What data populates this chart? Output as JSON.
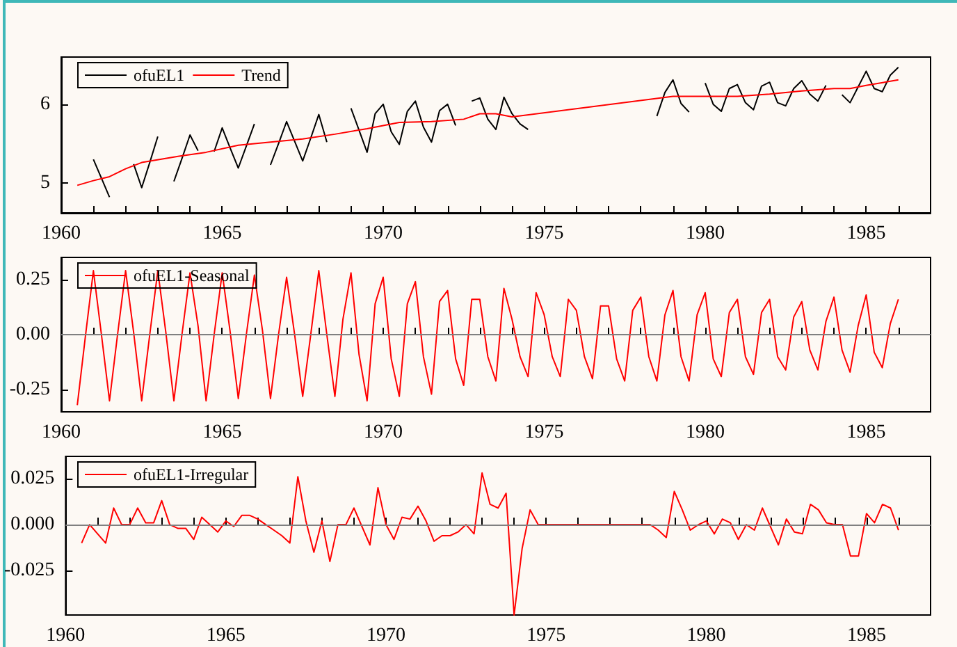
{
  "chart_data": [
    {
      "type": "line",
      "legend": "top left",
      "grid": false,
      "marker": "none",
      "line_style": "solid",
      "x": [
        1961,
        1961.25,
        1961.5,
        1961.75,
        1962,
        1962.25,
        1962.5,
        1962.75,
        1963,
        1963.25,
        1963.5,
        1963.75,
        1964,
        1964.25,
        1964.5,
        1964.75,
        1965,
        1965.25,
        1965.5,
        1965.75,
        1966,
        1966.25,
        1966.5,
        1966.75,
        1967,
        1967.25,
        1967.5,
        1967.75,
        1968,
        1968.25,
        1968.5,
        1968.75,
        1969,
        1969.25,
        1969.5,
        1969.75,
        1970,
        1970.25,
        1970.5,
        1970.75,
        1971,
        1971.25,
        1971.5,
        1971.75,
        1972,
        1972.25,
        1972.5,
        1972.75,
        1973,
        1973.25,
        1973.5,
        1973.75,
        1974,
        1974.25,
        1974.5,
        1974.75,
        1975,
        1975.25,
        1975.5,
        1975.75,
        1976,
        1976.25,
        1976.5,
        1976.75,
        1977,
        1977.25,
        1977.5,
        1977.75,
        1978,
        1978.25,
        1978.5,
        1978.75,
        1979,
        1979.25,
        1979.5,
        1979.75,
        1980,
        1980.25,
        1980.5,
        1980.75,
        1981,
        1981.25,
        1981.5,
        1981.75,
        1982,
        1982.25,
        1982.5,
        1982.75,
        1983,
        1983.25,
        1983.5,
        1983.75,
        1984,
        1984.25,
        1984.5,
        1984.75,
        1985,
        1985.25,
        1985.5,
        1985.75,
        1986
      ],
      "series": [
        {
          "name": "ofuEL1",
          "color": "#000000",
          "values": [
            5.3,
            5.06,
            4.82,
            null,
            null,
            5.24,
            4.94,
            5.26,
            5.59,
            null,
            5.02,
            5.31,
            5.61,
            5.41,
            null,
            5.4,
            5.7,
            5.44,
            5.19,
            5.47,
            5.75,
            null,
            5.23,
            5.5,
            5.78,
            5.53,
            5.28,
            5.57,
            5.87,
            5.52,
            null,
            null,
            5.95,
            5.67,
            5.39,
            5.88,
            6.0,
            5.65,
            5.49,
            5.91,
            6.04,
            5.71,
            5.52,
            5.92,
            6.0,
            5.73,
            null,
            6.04,
            6.08,
            5.81,
            5.68,
            6.09,
            5.88,
            5.75,
            5.68,
            null,
            null,
            null,
            null,
            null,
            null,
            null,
            null,
            null,
            null,
            null,
            null,
            null,
            null,
            null,
            5.85,
            6.15,
            6.31,
            6.01,
            5.9,
            null,
            6.27,
            6.0,
            5.91,
            6.2,
            6.25,
            6.02,
            5.93,
            6.23,
            6.28,
            6.02,
            5.98,
            6.2,
            6.3,
            6.13,
            6.04,
            6.24,
            null,
            6.12,
            6.02,
            6.22,
            6.42,
            6.2,
            6.16,
            6.37,
            6.47
          ]
        },
        {
          "name": "Trend",
          "color": "#ff0000",
          "x": [
            1960.5,
            1961,
            1961.5,
            1962,
            1962.5,
            1963.5,
            1964.5,
            1965.5,
            1966.5,
            1967.5,
            1968.5,
            1969.5,
            1970.5,
            1971.5,
            1972.5,
            1973,
            1973.5,
            1974,
            1979,
            1980,
            1981,
            1982,
            1983,
            1984,
            1984.5,
            1985,
            1986
          ],
          "values": [
            4.97,
            5.03,
            5.08,
            5.18,
            5.26,
            5.33,
            5.39,
            5.48,
            5.52,
            5.56,
            5.62,
            5.69,
            5.77,
            5.78,
            5.81,
            5.88,
            5.88,
            5.84,
            6.1,
            6.1,
            6.1,
            6.13,
            6.17,
            6.2,
            6.2,
            6.24,
            6.31
          ]
        }
      ],
      "xlim": [
        1960,
        1987
      ],
      "xticks": [
        1960,
        {
          "value": 1961,
          "label": null
        },
        {
          "value": 1962,
          "label": null
        },
        {
          "value": 1963,
          "label": null
        },
        {
          "value": 1964,
          "label": null
        },
        1965,
        {
          "value": 1966,
          "label": null
        },
        {
          "value": 1967,
          "label": null
        },
        {
          "value": 1968,
          "label": null
        },
        {
          "value": 1969,
          "label": null
        },
        1970,
        {
          "value": 1971,
          "label": null
        },
        {
          "value": 1972,
          "label": null
        },
        {
          "value": 1973,
          "label": null
        },
        {
          "value": 1974,
          "label": null
        },
        1975,
        {
          "value": 1976,
          "label": null
        },
        {
          "value": 1977,
          "label": null
        },
        {
          "value": 1978,
          "label": null
        },
        {
          "value": 1979,
          "label": null
        },
        1980,
        {
          "value": 1981,
          "label": null
        },
        {
          "value": 1982,
          "label": null
        },
        {
          "value": 1983,
          "label": null
        },
        {
          "value": 1984,
          "label": null
        },
        1985,
        {
          "value": 1986,
          "label": null
        }
      ],
      "ylim": [
        4.62,
        6.6
      ],
      "yticks": [
        5,
        6
      ]
    },
    {
      "type": "line",
      "legend": "top left",
      "grid": false,
      "marker": "none",
      "line_style": "solid",
      "x": [
        1960.5,
        1960.75,
        1961,
        1961.25,
        1961.5,
        1961.75,
        1962,
        1962.25,
        1962.5,
        1962.75,
        1963,
        1963.25,
        1963.5,
        1963.75,
        1964,
        1964.25,
        1964.5,
        1964.75,
        1965,
        1965.25,
        1965.5,
        1965.75,
        1966,
        1966.25,
        1966.5,
        1966.75,
        1967,
        1967.25,
        1967.5,
        1967.75,
        1968,
        1968.25,
        1968.5,
        1968.75,
        1969,
        1969.25,
        1969.5,
        1969.75,
        1970,
        1970.25,
        1970.5,
        1970.75,
        1971,
        1971.25,
        1971.5,
        1971.75,
        1972,
        1972.25,
        1972.5,
        1972.75,
        1973,
        1973.25,
        1973.5,
        1973.75,
        1974,
        1974.25,
        1974.5,
        1974.75,
        1975,
        1975.25,
        1975.5,
        1975.75,
        1976,
        1976.25,
        1976.5,
        1976.75,
        1977,
        1977.25,
        1977.5,
        1977.75,
        1978,
        1978.25,
        1978.5,
        1978.75,
        1979,
        1979.25,
        1979.5,
        1979.75,
        1980,
        1980.25,
        1980.5,
        1980.75,
        1981,
        1981.25,
        1981.5,
        1981.75,
        1982,
        1982.25,
        1982.5,
        1982.75,
        1983,
        1983.25,
        1983.5,
        1983.75,
        1984,
        1984.25,
        1984.5,
        1984.75,
        1985,
        1985.25,
        1985.5,
        1985.75,
        1986
      ],
      "series": [
        {
          "name": "ofuEL1-Seasonal",
          "color": "#ff0000",
          "values": [
            -0.32,
            -0.01,
            0.29,
            0.0,
            -0.3,
            0.0,
            0.29,
            0.01,
            -0.3,
            0.0,
            0.29,
            0.01,
            -0.3,
            0.0,
            0.28,
            0.04,
            -0.3,
            0.0,
            0.28,
            0.01,
            -0.29,
            0.0,
            0.27,
            0.02,
            -0.29,
            0.0,
            0.26,
            0.0,
            -0.28,
            0.0,
            0.29,
            0.0,
            -0.28,
            0.07,
            0.28,
            -0.09,
            -0.3,
            0.14,
            0.26,
            -0.11,
            -0.28,
            0.14,
            0.24,
            -0.1,
            -0.27,
            0.15,
            0.2,
            -0.11,
            -0.23,
            0.16,
            0.16,
            -0.1,
            -0.21,
            0.21,
            0.07,
            -0.1,
            -0.19,
            0.19,
            0.09,
            -0.1,
            -0.19,
            0.16,
            0.11,
            -0.1,
            -0.2,
            0.13,
            0.13,
            -0.11,
            -0.21,
            0.11,
            0.17,
            -0.1,
            -0.21,
            0.09,
            0.2,
            -0.1,
            -0.21,
            0.09,
            0.19,
            -0.11,
            -0.19,
            0.1,
            0.16,
            -0.1,
            -0.18,
            0.1,
            0.16,
            -0.1,
            -0.16,
            0.08,
            0.15,
            -0.07,
            -0.16,
            0.06,
            0.17,
            -0.07,
            -0.17,
            0.04,
            0.18,
            -0.08,
            -0.15,
            0.05,
            0.16
          ]
        }
      ],
      "ref_lines": [
        {
          "axis": "y",
          "value": 0,
          "color": "#808080"
        }
      ],
      "xlim": [
        1960,
        1987
      ],
      "xticks": [
        1960,
        {
          "value": 1961,
          "label": null
        },
        {
          "value": 1962,
          "label": null
        },
        {
          "value": 1963,
          "label": null
        },
        {
          "value": 1964,
          "label": null
        },
        1965,
        {
          "value": 1966,
          "label": null
        },
        {
          "value": 1967,
          "label": null
        },
        {
          "value": 1968,
          "label": null
        },
        {
          "value": 1969,
          "label": null
        },
        1970,
        {
          "value": 1971,
          "label": null
        },
        {
          "value": 1972,
          "label": null
        },
        {
          "value": 1973,
          "label": null
        },
        {
          "value": 1974,
          "label": null
        },
        1975,
        {
          "value": 1976,
          "label": null
        },
        {
          "value": 1977,
          "label": null
        },
        {
          "value": 1978,
          "label": null
        },
        {
          "value": 1979,
          "label": null
        },
        1980,
        {
          "value": 1981,
          "label": null
        },
        {
          "value": 1982,
          "label": null
        },
        {
          "value": 1983,
          "label": null
        },
        {
          "value": 1984,
          "label": null
        },
        1985,
        {
          "value": 1986,
          "label": null
        }
      ],
      "ylim": [
        -0.35,
        0.35
      ],
      "yticks": [
        -0.25,
        {
          "value": 0,
          "label": "0.00"
        },
        0.25
      ]
    },
    {
      "type": "line",
      "legend": "top left",
      "grid": false,
      "marker": "none",
      "line_style": "solid",
      "x": [
        1960.5,
        1960.75,
        1961,
        1961.25,
        1961.5,
        1961.75,
        1962,
        1962.25,
        1962.5,
        1962.75,
        1963,
        1963.25,
        1963.5,
        1963.75,
        1964,
        1964.25,
        1964.5,
        1964.75,
        1965,
        1965.25,
        1965.5,
        1965.75,
        1966,
        1966.25,
        1966.5,
        1966.75,
        1967,
        1967.25,
        1967.5,
        1967.75,
        1968,
        1968.25,
        1968.5,
        1968.75,
        1969,
        1969.25,
        1969.5,
        1969.75,
        1970,
        1970.25,
        1970.5,
        1970.75,
        1971,
        1971.25,
        1971.5,
        1971.75,
        1972,
        1972.25,
        1972.5,
        1972.75,
        1973,
        1973.25,
        1973.5,
        1973.75,
        1974,
        1974.25,
        1974.5,
        1974.75,
        1975,
        1975.25,
        1975.5,
        1975.75,
        1976,
        1976.25,
        1976.5,
        1976.75,
        1977,
        1977.25,
        1977.5,
        1977.75,
        1978,
        1978.25,
        1978.5,
        1978.75,
        1979,
        1979.25,
        1979.5,
        1979.75,
        1980,
        1980.25,
        1980.5,
        1980.75,
        1981,
        1981.25,
        1981.5,
        1981.75,
        1982,
        1982.25,
        1982.5,
        1982.75,
        1983,
        1983.25,
        1983.5,
        1983.75,
        1984,
        1984.25,
        1984.5,
        1984.75,
        1985,
        1985.25,
        1985.5,
        1985.75,
        1986
      ],
      "series": [
        {
          "name": "ofuEL1-Irregular",
          "color": "#ff0000",
          "values": [
            -0.01,
            0,
            -0.005,
            -0.01,
            0.009,
            0,
            0,
            0.009,
            0.001,
            0.001,
            0.013,
            0,
            -0.002,
            -0.002,
            -0.008,
            0.004,
            0,
            -0.004,
            0.002,
            -0.001,
            0.005,
            0.005,
            0.003,
            0,
            -0.003,
            -0.006,
            -0.01,
            0.026,
            0.002,
            -0.015,
            0.002,
            -0.02,
            0,
            0,
            0.009,
            -0.001,
            -0.011,
            0.02,
            0,
            -0.008,
            0.004,
            0.003,
            0.01,
            0.002,
            -0.009,
            -0.006,
            -0.006,
            -0.004,
            0,
            -0.005,
            0.028,
            0.011,
            0.009,
            0.017,
            -0.049,
            -0.013,
            0.008,
            0,
            0,
            0,
            0,
            0,
            0,
            0,
            0,
            0,
            0,
            0,
            0,
            0,
            0,
            0,
            -0.003,
            -0.007,
            0.018,
            0.008,
            -0.003,
            0,
            0.002,
            -0.005,
            0.003,
            0.001,
            -0.008,
            0,
            -0.003,
            0.009,
            -0.001,
            -0.011,
            0.003,
            -0.004,
            -0.005,
            0.011,
            0.008,
            0.001,
            0,
            0,
            -0.017,
            -0.017,
            0.006,
            0.001,
            0.011,
            0.009,
            -0.003
          ]
        }
      ],
      "ref_lines": [
        {
          "axis": "y",
          "value": 0,
          "color": "#808080"
        }
      ],
      "xlim": [
        1960,
        1987
      ],
      "xticks": [
        1960,
        {
          "value": 1961,
          "label": null
        },
        {
          "value": 1962,
          "label": null
        },
        {
          "value": 1963,
          "label": null
        },
        {
          "value": 1964,
          "label": null
        },
        1965,
        {
          "value": 1966,
          "label": null
        },
        {
          "value": 1967,
          "label": null
        },
        {
          "value": 1968,
          "label": null
        },
        {
          "value": 1969,
          "label": null
        },
        1970,
        {
          "value": 1971,
          "label": null
        },
        {
          "value": 1972,
          "label": null
        },
        {
          "value": 1973,
          "label": null
        },
        {
          "value": 1974,
          "label": null
        },
        1975,
        {
          "value": 1976,
          "label": null
        },
        {
          "value": 1977,
          "label": null
        },
        {
          "value": 1978,
          "label": null
        },
        {
          "value": 1979,
          "label": null
        },
        1980,
        {
          "value": 1981,
          "label": null
        },
        {
          "value": 1982,
          "label": null
        },
        {
          "value": 1983,
          "label": null
        },
        {
          "value": 1984,
          "label": null
        },
        1985,
        {
          "value": 1986,
          "label": null
        }
      ],
      "ylim": [
        -0.049,
        0.037
      ],
      "yticks": [
        -0.025,
        {
          "value": 0,
          "label": "0.000"
        },
        0.025
      ]
    }
  ]
}
